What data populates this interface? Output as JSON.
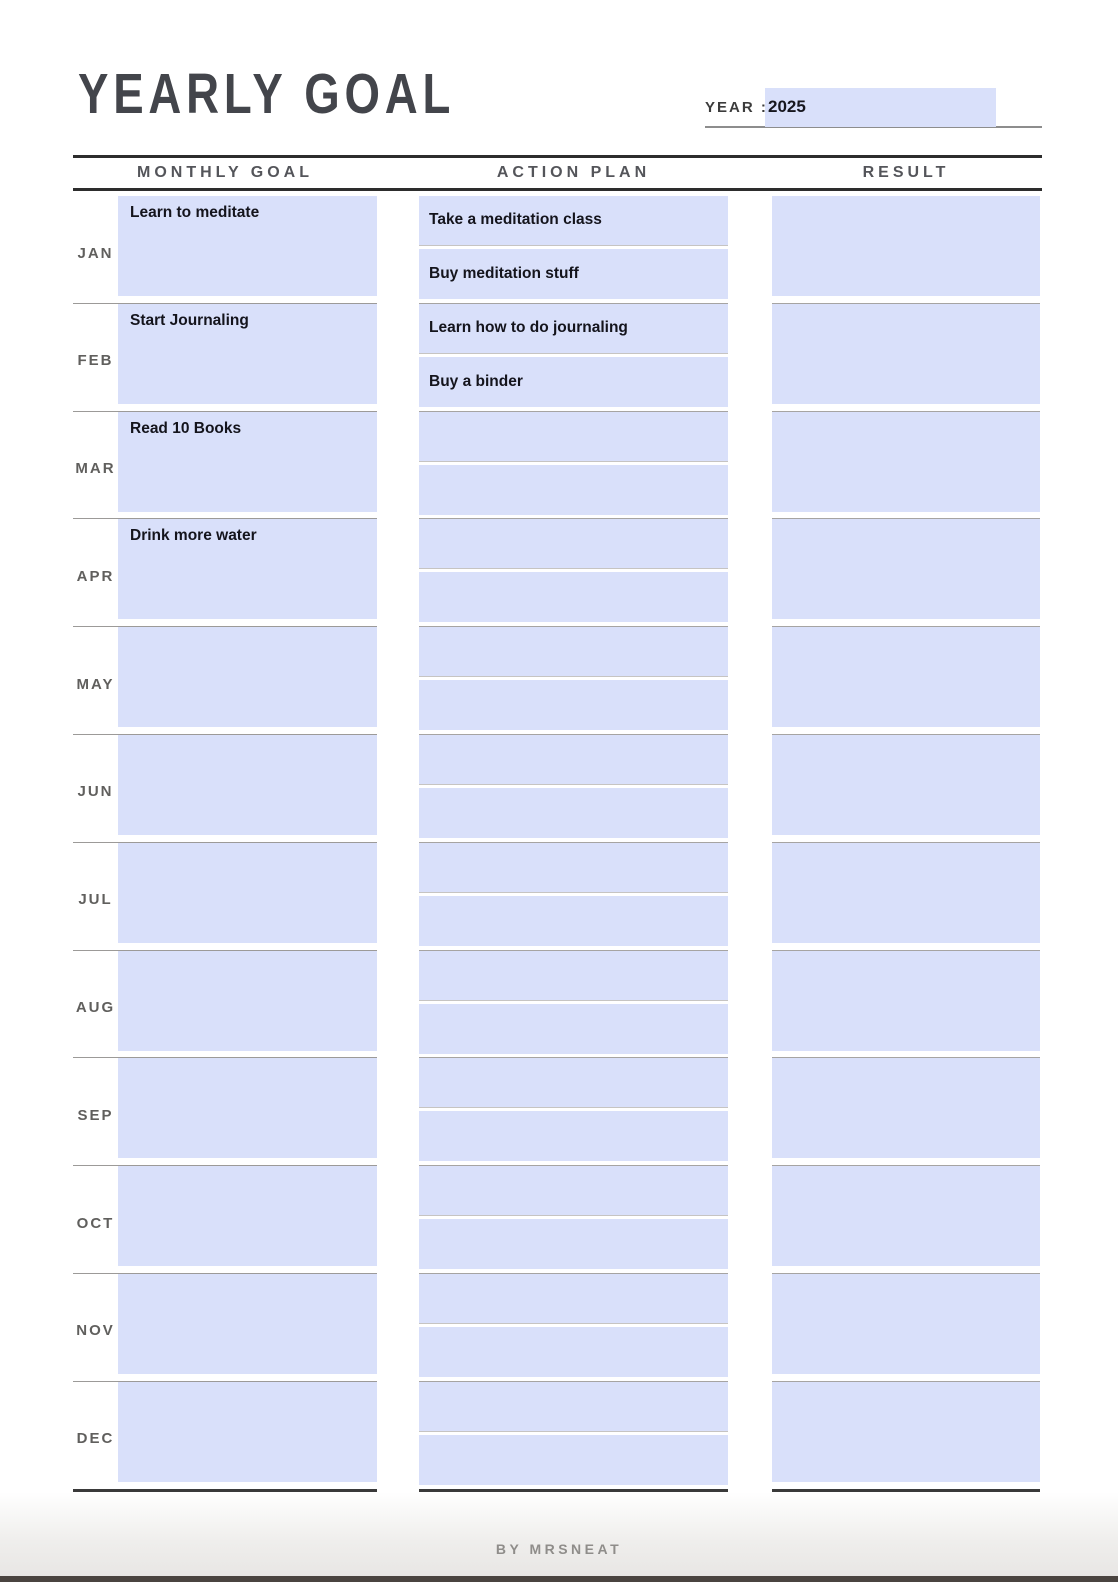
{
  "page": {
    "title": "YEARLY GOAL",
    "year_label": "YEAR :",
    "year_value": "2025",
    "footer": "BY MRSNEAT"
  },
  "columns": {
    "monthly_goal": "MONTHLY GOAL",
    "action_plan": "ACTION PLAN",
    "result": "RESULT"
  },
  "colors": {
    "cell_fill": "#d9e0fa",
    "dark_line": "#2d2d2d",
    "separator_gray": "#9c9a98",
    "title_text": "#43454b",
    "month_label_text": "#605f5d",
    "footer_text": "#8f8d8a",
    "bottom_bar": "#4a4440"
  },
  "months": [
    {
      "label": "JAN",
      "goal": "Learn to meditate",
      "actions": [
        "Take a meditation class",
        "Buy meditation stuff"
      ],
      "result": ""
    },
    {
      "label": "FEB",
      "goal": "Start Journaling",
      "actions": [
        "Learn how to do journaling",
        "Buy a binder"
      ],
      "result": ""
    },
    {
      "label": "MAR",
      "goal": "Read 10 Books",
      "actions": [
        "",
        ""
      ],
      "result": ""
    },
    {
      "label": "APR",
      "goal": "Drink more water",
      "actions": [
        "",
        ""
      ],
      "result": ""
    },
    {
      "label": "MAY",
      "goal": "",
      "actions": [
        "",
        ""
      ],
      "result": ""
    },
    {
      "label": "JUN",
      "goal": "",
      "actions": [
        "",
        ""
      ],
      "result": ""
    },
    {
      "label": "JUL",
      "goal": "",
      "actions": [
        "",
        ""
      ],
      "result": ""
    },
    {
      "label": "AUG",
      "goal": "",
      "actions": [
        "",
        ""
      ],
      "result": ""
    },
    {
      "label": "SEP",
      "goal": "",
      "actions": [
        "",
        ""
      ],
      "result": ""
    },
    {
      "label": "OCT",
      "goal": "",
      "actions": [
        "",
        ""
      ],
      "result": ""
    },
    {
      "label": "NOV",
      "goal": "",
      "actions": [
        "",
        ""
      ],
      "result": ""
    },
    {
      "label": "DEC",
      "goal": "",
      "actions": [
        "",
        ""
      ],
      "result": ""
    }
  ]
}
